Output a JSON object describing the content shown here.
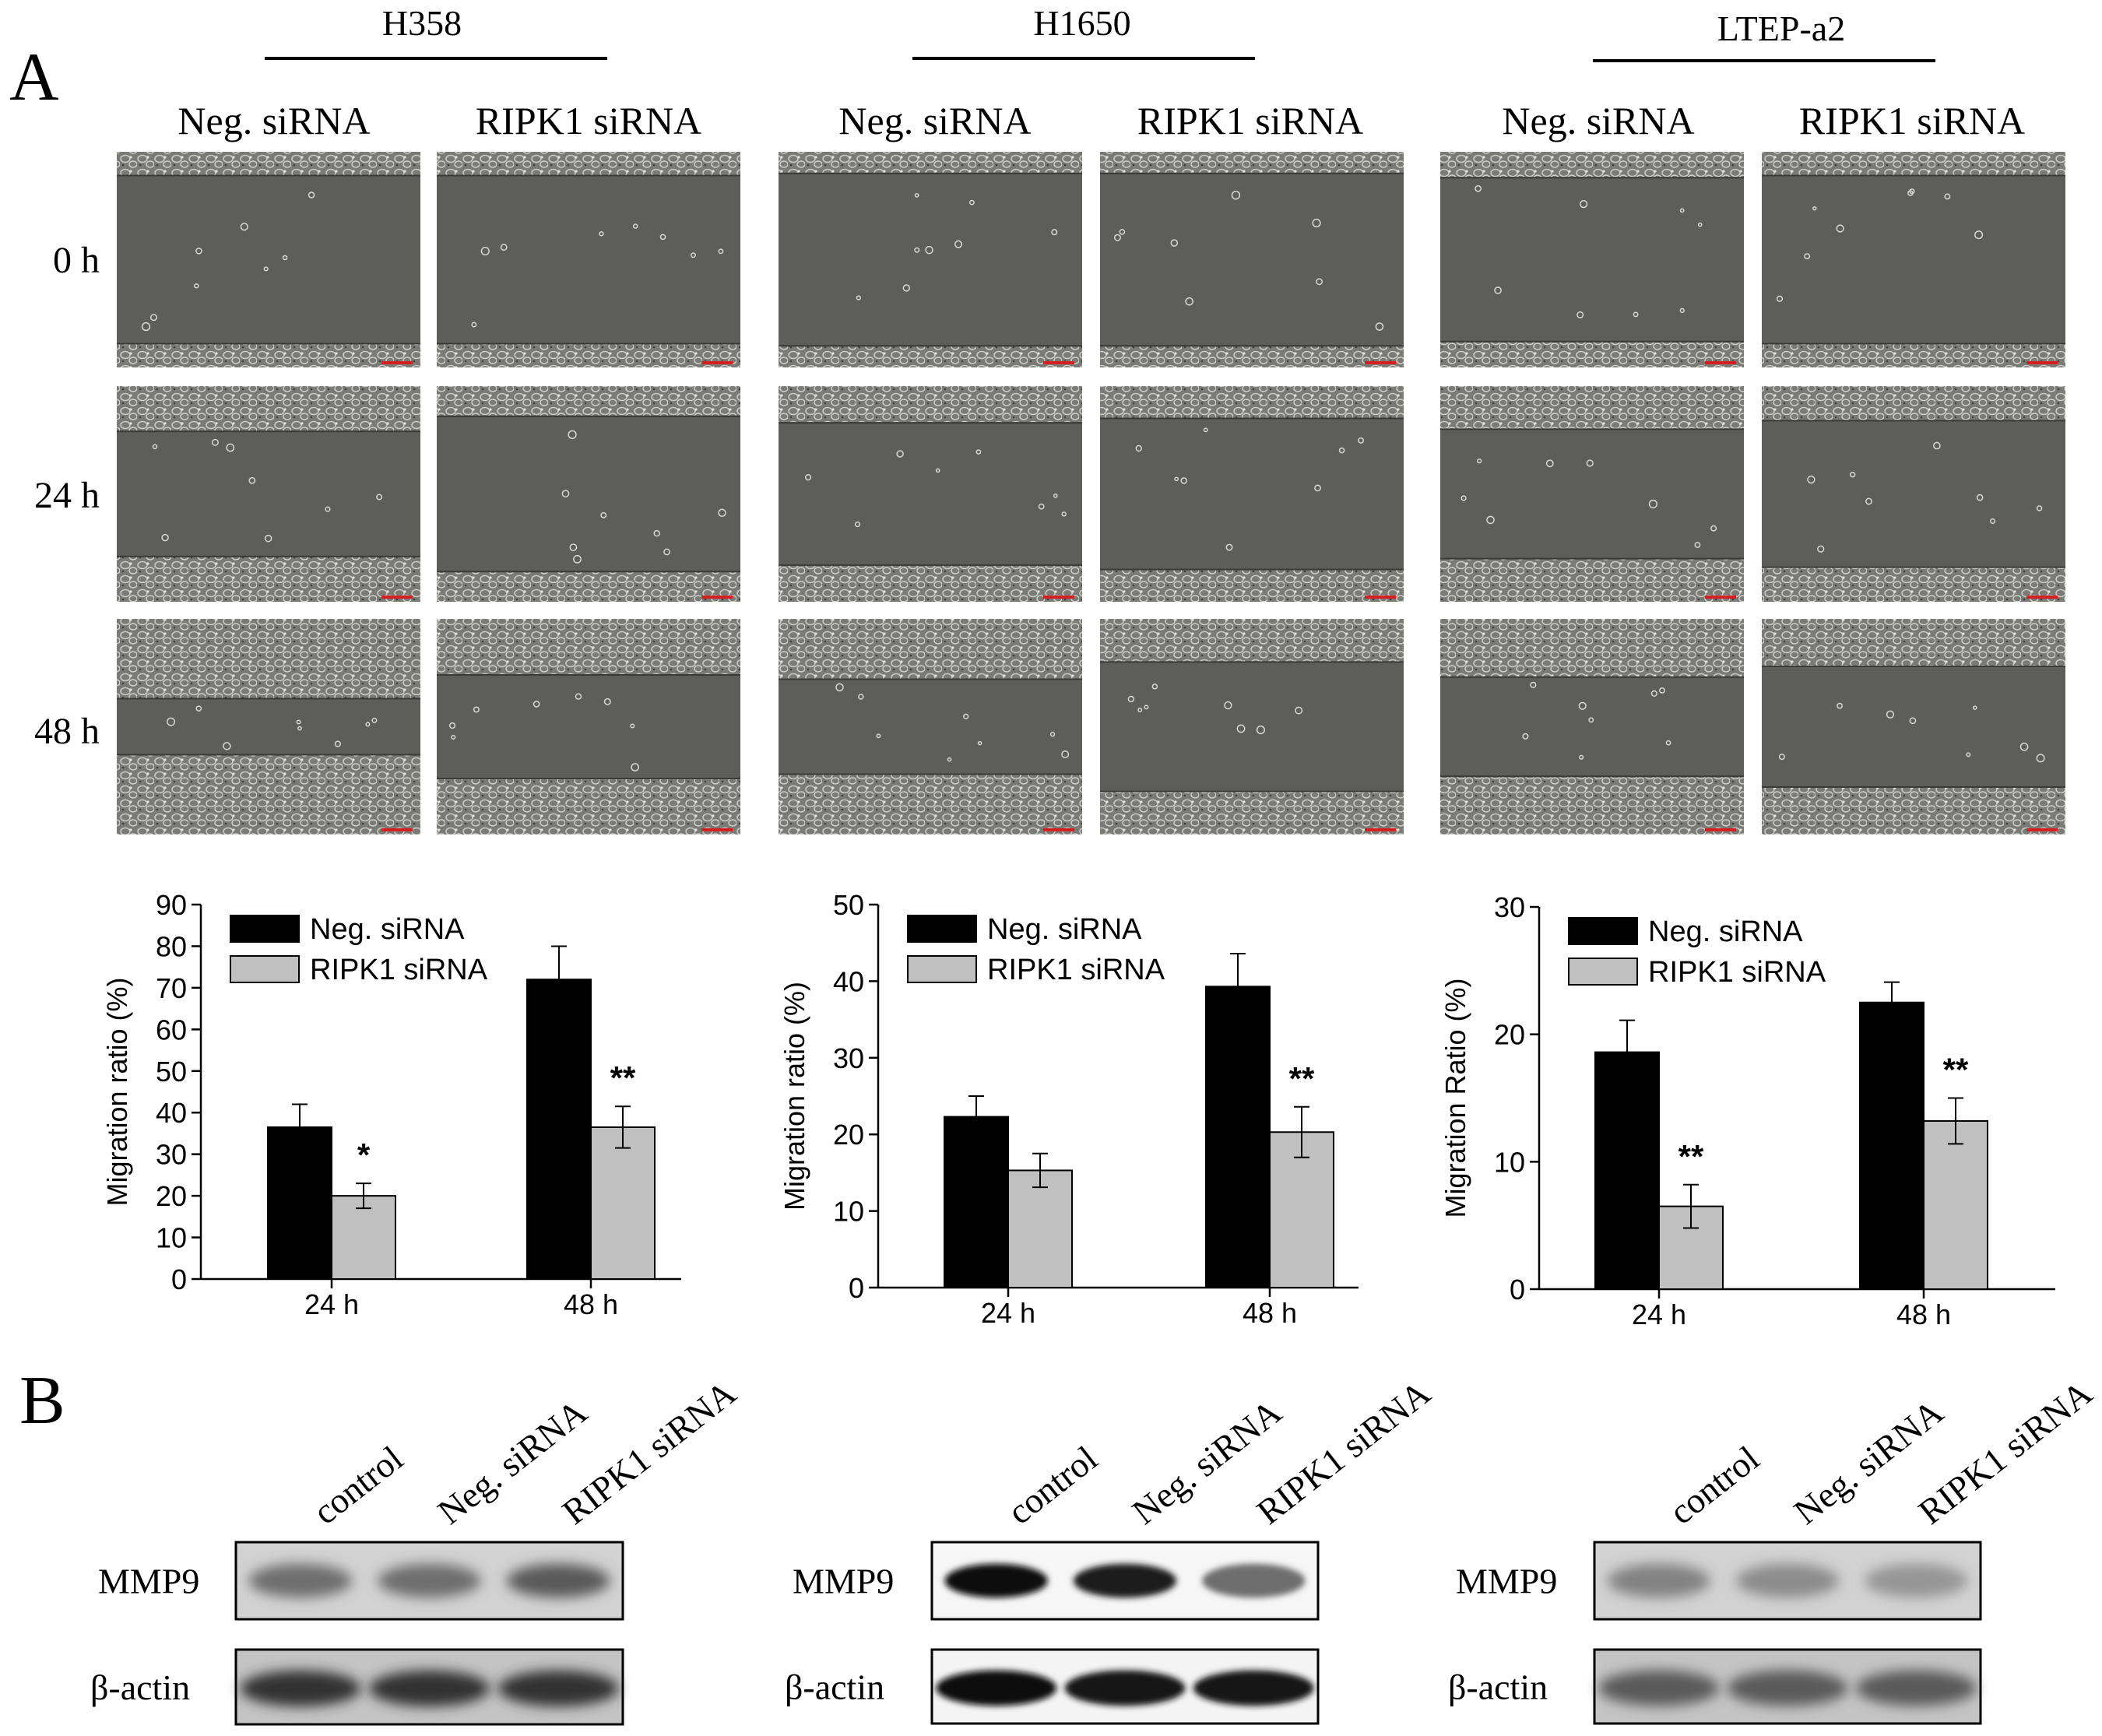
{
  "panel_labels": {
    "a": "A",
    "b": "B"
  },
  "cell_lines": [
    "H358",
    "H1650",
    "LTEP-a2"
  ],
  "conditions": [
    "Neg. siRNA",
    "RIPK1 siRNA"
  ],
  "time_points": [
    "0 h",
    "24 h",
    "48 h"
  ],
  "western": {
    "lanes": [
      "control",
      "Neg. siRNA",
      "RIPK1 siRNA"
    ],
    "proteins": [
      "MMP9",
      "β-actin"
    ],
    "mmp9_intensity": [
      [
        0.45,
        0.45,
        0.55
      ],
      [
        0.95,
        0.85,
        0.45
      ],
      [
        0.35,
        0.3,
        0.25
      ]
    ],
    "actin_intensity": [
      [
        0.75,
        0.75,
        0.75
      ],
      [
        0.95,
        0.9,
        0.9
      ],
      [
        0.55,
        0.55,
        0.55
      ]
    ]
  },
  "colors": {
    "neg_bar": "#000000",
    "ripk1_bar": "#c0c0c0",
    "micrograph_bg": "#5d5d5a",
    "scale_bar": "#d42020"
  },
  "chart_data": [
    {
      "type": "bar",
      "categories": [
        "24 h",
        "48 h"
      ],
      "series": [
        {
          "name": "Neg. siRNA",
          "values": [
            36.5,
            72
          ],
          "errors": [
            5.5,
            8
          ]
        },
        {
          "name": "RIPK1 siRNA",
          "values": [
            20,
            36.5
          ],
          "errors": [
            3,
            5
          ]
        }
      ],
      "annotations": [
        [
          "",
          "*"
        ],
        [
          "",
          "**"
        ]
      ],
      "ylabel": "Migration ratio (%)",
      "ylim": [
        0,
        90
      ],
      "yticks": [
        0,
        10,
        20,
        30,
        40,
        50,
        60,
        70,
        80,
        90
      ],
      "legend": "top-left"
    },
    {
      "type": "bar",
      "categories": [
        "24 h",
        "48 h"
      ],
      "series": [
        {
          "name": "Neg. siRNA",
          "values": [
            22.3,
            39.3
          ],
          "errors": [
            2.7,
            4.3
          ]
        },
        {
          "name": "RIPK1 siRNA",
          "values": [
            15.3,
            20.3
          ],
          "errors": [
            2.2,
            3.3
          ]
        }
      ],
      "annotations": [
        [
          "",
          ""
        ],
        [
          "",
          "**"
        ]
      ],
      "ylabel": "Migration ratio (%)",
      "ylim": [
        0,
        50
      ],
      "yticks": [
        0,
        10,
        20,
        30,
        40,
        50
      ],
      "legend": "top-left"
    },
    {
      "type": "bar",
      "categories": [
        "24 h",
        "48 h"
      ],
      "series": [
        {
          "name": "Neg. siRNA",
          "values": [
            18.6,
            22.5
          ],
          "errors": [
            2.5,
            1.6
          ]
        },
        {
          "name": "RIPK1 siRNA",
          "values": [
            6.5,
            13.2
          ],
          "errors": [
            1.7,
            1.8
          ]
        }
      ],
      "annotations": [
        [
          "",
          "**"
        ],
        [
          "",
          "**"
        ]
      ],
      "ylabel": "Migration Ratio (%)",
      "ylim": [
        0,
        30
      ],
      "yticks": [
        0,
        10,
        20,
        30
      ],
      "legend": "top-left"
    }
  ]
}
